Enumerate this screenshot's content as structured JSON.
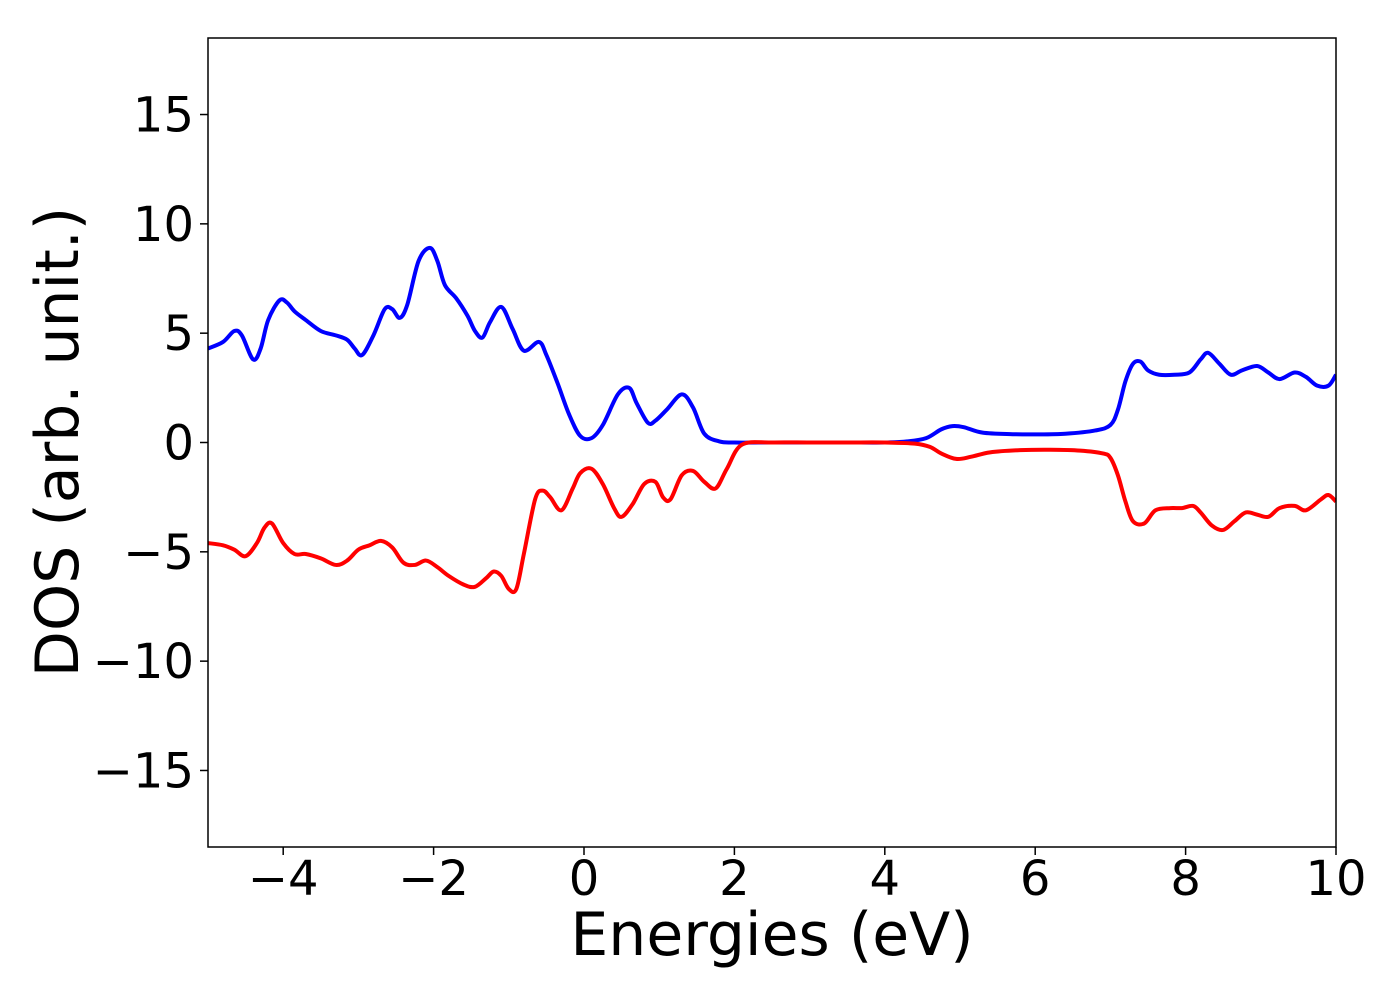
{
  "chart_data": {
    "type": "line",
    "title": "",
    "xlabel": "Energies (eV)",
    "ylabel": "DOS (arb. unit.)",
    "xlim": [
      -5,
      10
    ],
    "ylim": [
      -18.5,
      18.5
    ],
    "grid": false,
    "legend": "none",
    "x_ticks": [
      -4,
      -2,
      0,
      2,
      4,
      6,
      8,
      10
    ],
    "x_tick_labels": [
      "−4",
      "−2",
      "0",
      "2",
      "4",
      "6",
      "8",
      "10"
    ],
    "y_ticks": [
      -15,
      -10,
      -5,
      0,
      5,
      10,
      15
    ],
    "y_tick_labels": [
      "−15",
      "−10",
      "−5",
      "0",
      "5",
      "10",
      "15"
    ],
    "series": [
      {
        "color": "#0000ff",
        "x": [
          -5.0,
          -4.8,
          -4.65,
          -4.55,
          -4.4,
          -4.3,
          -4.2,
          -4.05,
          -3.95,
          -3.85,
          -3.7,
          -3.5,
          -3.3,
          -3.15,
          -3.05,
          -2.95,
          -2.8,
          -2.65,
          -2.55,
          -2.45,
          -2.35,
          -2.2,
          -2.05,
          -1.95,
          -1.85,
          -1.7,
          -1.55,
          -1.45,
          -1.35,
          -1.25,
          -1.1,
          -0.95,
          -0.8,
          -0.6,
          -0.5,
          -0.35,
          -0.2,
          -0.05,
          0.1,
          0.25,
          0.45,
          0.6,
          0.7,
          0.85,
          0.95,
          1.1,
          1.3,
          1.45,
          1.6,
          1.8,
          2.0,
          2.5,
          3.0,
          3.5,
          4.0,
          4.3,
          4.55,
          4.75,
          4.9,
          5.05,
          5.3,
          5.7,
          6.0,
          6.4,
          6.8,
          7.0,
          7.1,
          7.2,
          7.3,
          7.4,
          7.5,
          7.65,
          7.85,
          8.05,
          8.2,
          8.3,
          8.45,
          8.6,
          8.75,
          8.95,
          9.1,
          9.25,
          9.45,
          9.6,
          9.75,
          9.9,
          10.0
        ],
        "y": [
          4.3,
          4.6,
          5.1,
          4.9,
          3.8,
          4.3,
          5.6,
          6.5,
          6.4,
          6.0,
          5.6,
          5.1,
          4.9,
          4.7,
          4.3,
          4.0,
          4.9,
          6.1,
          6.1,
          5.7,
          6.3,
          8.3,
          8.9,
          8.3,
          7.2,
          6.6,
          5.8,
          5.1,
          4.8,
          5.5,
          6.2,
          5.2,
          4.2,
          4.6,
          4.0,
          2.7,
          1.3,
          0.3,
          0.2,
          0.8,
          2.2,
          2.5,
          1.8,
          0.9,
          1.0,
          1.5,
          2.2,
          1.6,
          0.4,
          0.05,
          0.0,
          0.0,
          0.0,
          0.0,
          0.0,
          0.05,
          0.2,
          0.6,
          0.75,
          0.7,
          0.45,
          0.38,
          0.37,
          0.4,
          0.55,
          0.8,
          1.5,
          2.8,
          3.6,
          3.7,
          3.3,
          3.1,
          3.1,
          3.2,
          3.8,
          4.1,
          3.6,
          3.1,
          3.3,
          3.5,
          3.2,
          2.9,
          3.2,
          3.0,
          2.6,
          2.6,
          3.1
        ]
      },
      {
        "color": "#ff0000",
        "x": [
          -5.0,
          -4.8,
          -4.65,
          -4.5,
          -4.35,
          -4.25,
          -4.15,
          -4.0,
          -3.85,
          -3.7,
          -3.5,
          -3.3,
          -3.15,
          -3.0,
          -2.85,
          -2.7,
          -2.55,
          -2.4,
          -2.25,
          -2.1,
          -1.95,
          -1.8,
          -1.6,
          -1.45,
          -1.3,
          -1.2,
          -1.1,
          -1.0,
          -0.9,
          -0.8,
          -0.65,
          -0.55,
          -0.45,
          -0.3,
          -0.15,
          -0.05,
          0.1,
          0.25,
          0.4,
          0.5,
          0.65,
          0.8,
          0.95,
          1.05,
          1.15,
          1.3,
          1.45,
          1.6,
          1.75,
          1.9,
          2.1,
          2.5,
          3.0,
          3.5,
          4.0,
          4.4,
          4.6,
          4.75,
          4.95,
          5.15,
          5.4,
          5.8,
          6.2,
          6.6,
          6.9,
          7.0,
          7.1,
          7.2,
          7.3,
          7.45,
          7.6,
          7.8,
          7.95,
          8.1,
          8.2,
          8.35,
          8.5,
          8.65,
          8.8,
          8.95,
          9.1,
          9.25,
          9.45,
          9.6,
          9.8,
          9.9,
          10.0
        ],
        "y": [
          -4.6,
          -4.7,
          -4.9,
          -5.2,
          -4.6,
          -3.9,
          -3.7,
          -4.6,
          -5.1,
          -5.1,
          -5.3,
          -5.6,
          -5.4,
          -4.9,
          -4.7,
          -4.5,
          -4.8,
          -5.5,
          -5.6,
          -5.4,
          -5.7,
          -6.1,
          -6.5,
          -6.6,
          -6.2,
          -5.9,
          -6.1,
          -6.7,
          -6.7,
          -5.1,
          -2.6,
          -2.2,
          -2.5,
          -3.1,
          -2.1,
          -1.4,
          -1.2,
          -1.9,
          -3.0,
          -3.4,
          -2.8,
          -1.9,
          -1.8,
          -2.5,
          -2.6,
          -1.5,
          -1.3,
          -1.8,
          -2.1,
          -1.2,
          -0.1,
          0.0,
          0.0,
          0.0,
          0.0,
          -0.05,
          -0.2,
          -0.5,
          -0.75,
          -0.65,
          -0.45,
          -0.35,
          -0.33,
          -0.37,
          -0.5,
          -0.7,
          -1.5,
          -2.7,
          -3.6,
          -3.7,
          -3.1,
          -3.0,
          -3.0,
          -2.9,
          -3.2,
          -3.8,
          -4.0,
          -3.6,
          -3.2,
          -3.3,
          -3.4,
          -3.0,
          -2.9,
          -3.1,
          -2.6,
          -2.4,
          -2.7
        ]
      }
    ]
  }
}
